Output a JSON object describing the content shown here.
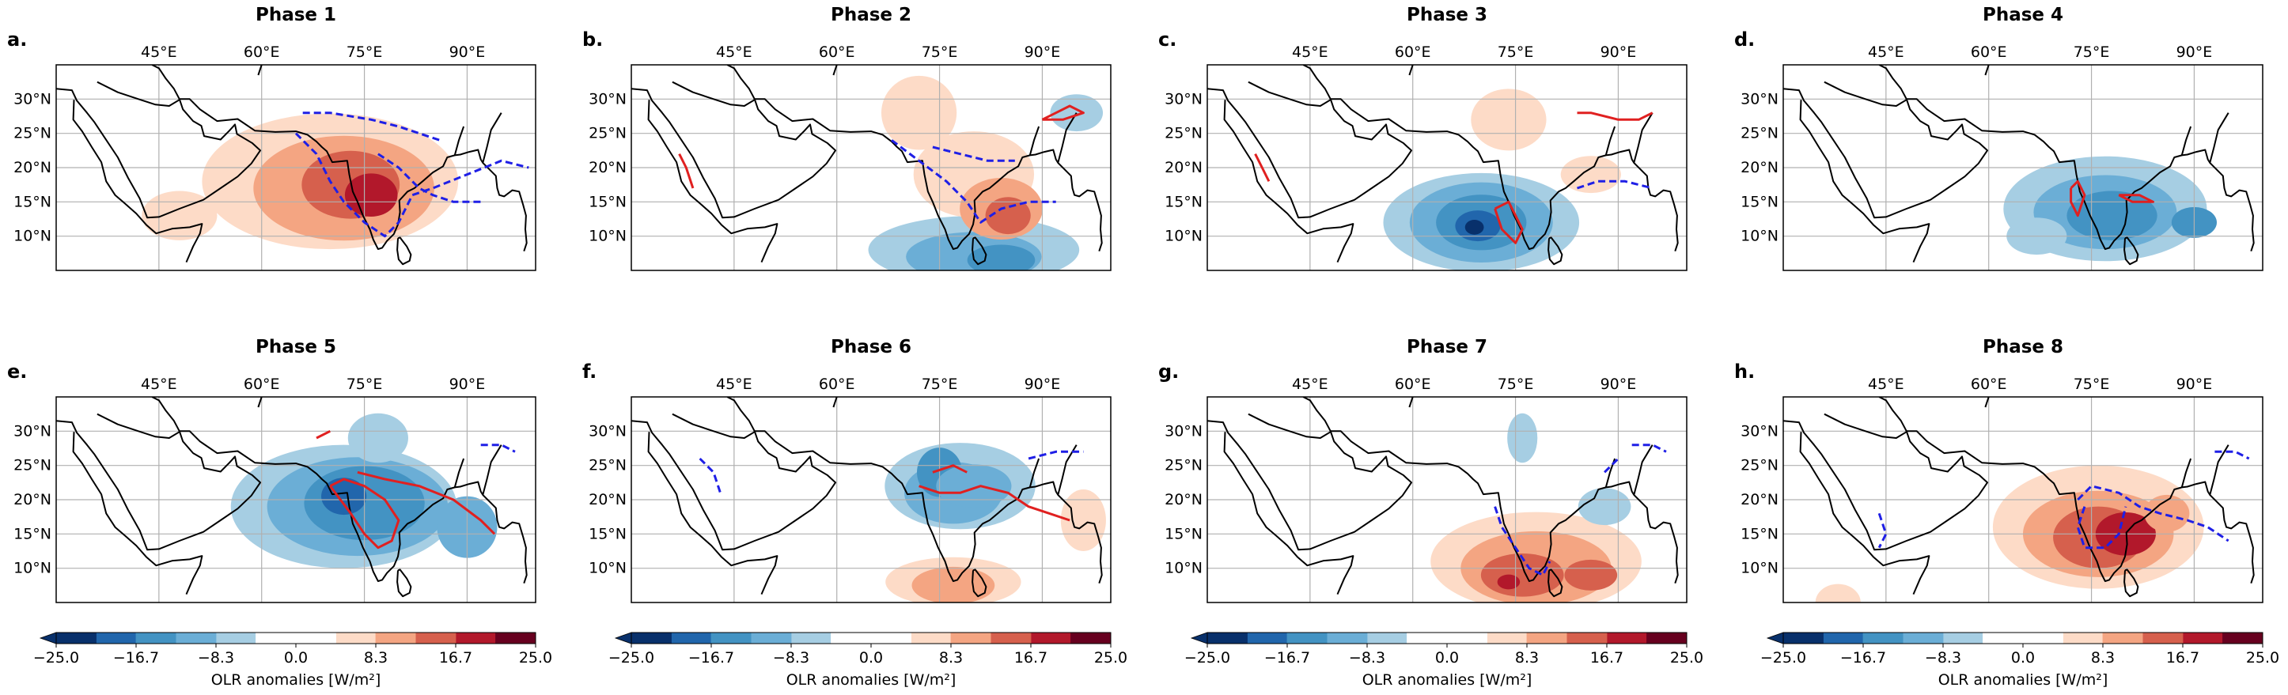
{
  "chart_data": {
    "type": "heatmap",
    "description_axis": "longitude / latitude",
    "lon_range": [
      30,
      100
    ],
    "lat_range": [
      5,
      35
    ],
    "lon_ticks": [
      "45°E",
      "60°E",
      "75°E",
      "90°E"
    ],
    "lat_ticks": [
      "30°N",
      "25°N",
      "20°N",
      "15°N",
      "10°N"
    ],
    "colorbar": {
      "label": "OLR anomalies [W/m²]",
      "ticks": [
        "−25.0",
        "−16.7",
        "−8.3",
        "0.0",
        "8.3",
        "16.7",
        "25.0"
      ],
      "levels": [
        -25.0,
        -20.8,
        -16.7,
        -12.5,
        -8.3,
        -4.2,
        0.0,
        4.2,
        8.3,
        12.5,
        16.7,
        20.8,
        25.0
      ],
      "colors": [
        "#08306b",
        "#2166ac",
        "#4393c3",
        "#6baed6",
        "#a6cee3",
        "#ffffff",
        "#fddbc7",
        "#f4a582",
        "#d6604d",
        "#b2182b",
        "#67001f"
      ]
    },
    "panels": [
      {
        "letter": "a.",
        "title": "Phase 1",
        "anomaly": "positive",
        "center": [
          72,
          17
        ],
        "contour_color": "blue"
      },
      {
        "letter": "b.",
        "title": "Phase 2",
        "anomaly": "mixed",
        "center": [
          82,
          14
        ],
        "contour_color": "blue+red"
      },
      {
        "letter": "c.",
        "title": "Phase 3",
        "anomaly": "negative",
        "center": [
          70,
          12
        ],
        "contour_color": "red"
      },
      {
        "letter": "d.",
        "title": "Phase 4",
        "anomaly": "negative",
        "center": [
          76,
          13
        ],
        "contour_color": "red"
      },
      {
        "letter": "e.",
        "title": "Phase 5",
        "anomaly": "negative",
        "center": [
          74,
          19
        ],
        "contour_color": "red"
      },
      {
        "letter": "f.",
        "title": "Phase 6",
        "anomaly": "negative",
        "center": [
          78,
          21
        ],
        "contour_color": "red"
      },
      {
        "letter": "g.",
        "title": "Phase 7",
        "anomaly": "positive",
        "center": [
          78,
          10
        ],
        "contour_color": "blue"
      },
      {
        "letter": "h.",
        "title": "Phase 8",
        "anomaly": "positive",
        "center": [
          76,
          15
        ],
        "contour_color": "blue"
      }
    ]
  }
}
